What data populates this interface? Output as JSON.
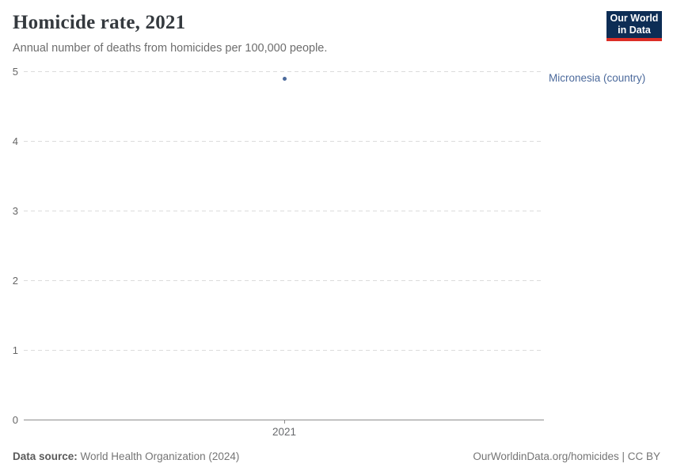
{
  "header": {
    "title": "Homicide rate, 2021",
    "subtitle": "Annual number of deaths from homicides per 100,000 people.",
    "logo": {
      "line1": "Our World",
      "line2": "in Data",
      "bg_color": "#0d2d55",
      "accent_color": "#dc2e26"
    }
  },
  "chart_data": {
    "type": "scatter",
    "title": "Homicide rate, 2021",
    "x": [
      2021
    ],
    "series": [
      {
        "name": "Micronesia (country)",
        "values": [
          4.9
        ],
        "color": "#4c6a9c"
      }
    ],
    "xlabel": "",
    "ylabel": "",
    "ylim": [
      0,
      5
    ],
    "yticks": [
      0,
      1,
      2,
      3,
      4,
      5
    ],
    "xtick_labels": [
      "2021"
    ],
    "grid": "horizontal-dashed",
    "legend_position": "right-of-point"
  },
  "footer": {
    "datasource_label": "Data source:",
    "datasource_value": "World Health Organization (2024)",
    "credit": "OurWorldinData.org/homicides | CC BY"
  }
}
